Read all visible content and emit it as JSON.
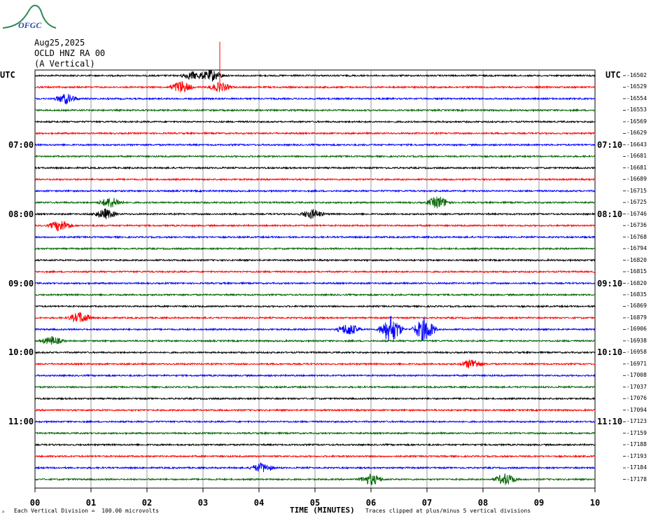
{
  "logo": {
    "text": "OFGC",
    "color": "#2e8b57",
    "text_color": "#2a4ea0"
  },
  "header": {
    "date": "Aug25,2025",
    "station": "OCLD HNZ RA 00",
    "component": "(A Vertical)"
  },
  "utc_left": "UTC",
  "utc_right": "UTC",
  "left_time_labels": [
    "07:00",
    "08:00",
    "09:00",
    "10:00",
    "11:00"
  ],
  "right_time_labels": [
    "07:10",
    "08:10",
    "09:10",
    "10:10",
    "11:10"
  ],
  "axis_title": "TIME (MINUTES)",
  "footer_left": "Each Vertical Division =  100.00 microvolts",
  "footer_right": "Traces clipped at plus/minus 5 vertical divisions",
  "footer_mark": "ₐ",
  "chart_data": {
    "type": "line",
    "title": "",
    "xlabel": "TIME (MINUTES)",
    "xlim": [
      0,
      10
    ],
    "x_ticks": [
      "00",
      "01",
      "02",
      "03",
      "04",
      "05",
      "06",
      "07",
      "08",
      "09",
      "10"
    ],
    "trace_colors": [
      "#000000",
      "#ff0000",
      "#0000ff",
      "#006400"
    ],
    "trace_offsets": [
      "-16502",
      "-16529",
      "-16554",
      "-16553",
      "-16569",
      "-16629",
      "-16643",
      "-16681",
      "-16681",
      "-16689",
      "-16715",
      "-16725",
      "-16746",
      "-16736",
      "-16768",
      "-16794",
      "-16820",
      "-16815",
      "-16820",
      "-16835",
      "-16869",
      "-16879",
      "-16906",
      "-16938",
      "-16958",
      "-16971",
      "-17008",
      "-17037",
      "-17076",
      "-17094",
      "-17123",
      "-17159",
      "-17188",
      "-17193",
      "-17184",
      "-17178"
    ],
    "events": [
      {
        "trace": 0,
        "minute": 2.8,
        "amp": 1.0
      },
      {
        "trace": 0,
        "minute": 3.15,
        "amp": 1.5
      },
      {
        "trace": 1,
        "minute": 2.6,
        "amp": 1.6
      },
      {
        "trace": 1,
        "minute": 3.3,
        "amp": 1.2,
        "spike": 3.6
      },
      {
        "trace": 2,
        "minute": 0.55,
        "amp": 1.3
      },
      {
        "trace": 11,
        "minute": 1.35,
        "amp": 1.4
      },
      {
        "trace": 11,
        "minute": 7.2,
        "amp": 1.6
      },
      {
        "trace": 12,
        "minute": 1.25,
        "amp": 1.3
      },
      {
        "trace": 12,
        "minute": 4.95,
        "amp": 1.2
      },
      {
        "trace": 13,
        "minute": 0.45,
        "amp": 1.5
      },
      {
        "trace": 21,
        "minute": 0.8,
        "amp": 1.4
      },
      {
        "trace": 22,
        "minute": 5.6,
        "amp": 1.6
      },
      {
        "trace": 22,
        "minute": 6.35,
        "amp": 3.6
      },
      {
        "trace": 22,
        "minute": 6.95,
        "amp": 3.2
      },
      {
        "trace": 23,
        "minute": 0.3,
        "amp": 1.1
      },
      {
        "trace": 25,
        "minute": 7.8,
        "amp": 1.3
      },
      {
        "trace": 34,
        "minute": 4.05,
        "amp": 1.2
      },
      {
        "trace": 35,
        "minute": 6.0,
        "amp": 1.4
      },
      {
        "trace": 35,
        "minute": 8.4,
        "amp": 1.5
      }
    ]
  }
}
